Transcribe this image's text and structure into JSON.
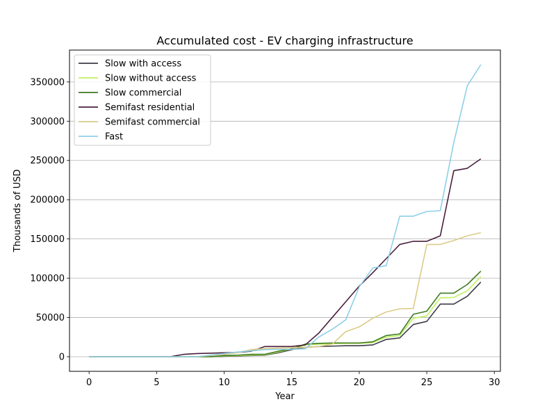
{
  "chart_data": {
    "type": "line",
    "title": "Accumulated cost - EV charging infrastructure",
    "xlabel": "Year",
    "ylabel": "Thousands of USD",
    "xlim": [
      -1.45,
      30.45
    ],
    "ylim": [
      -18600,
      390600
    ],
    "xticks": [
      0,
      5,
      10,
      15,
      20,
      25,
      30
    ],
    "yticks": [
      0,
      50000,
      100000,
      150000,
      200000,
      250000,
      300000,
      350000
    ],
    "grid": "horizontal",
    "legend_position": "top-left",
    "x": [
      0,
      1,
      2,
      3,
      4,
      5,
      6,
      7,
      8,
      9,
      10,
      11,
      12,
      13,
      14,
      15,
      16,
      17,
      18,
      19,
      20,
      21,
      22,
      23,
      24,
      25,
      26,
      27,
      28,
      29
    ],
    "series": [
      {
        "name": "Slow with access",
        "color": "#3b3b48",
        "values": [
          0,
          0,
          0,
          0,
          0,
          0,
          0,
          0,
          0,
          0,
          500,
          1000,
          1500,
          2000,
          5000,
          9000,
          12000,
          13000,
          13500,
          14000,
          14000,
          15000,
          22000,
          24000,
          41000,
          45000,
          67000,
          67000,
          77000,
          95000
        ]
      },
      {
        "name": "Slow without access",
        "color": "#c0f060",
        "values": [
          0,
          0,
          0,
          0,
          0,
          0,
          0,
          0,
          0,
          0,
          1000,
          1500,
          2000,
          2500,
          6000,
          10000,
          15000,
          16000,
          16500,
          17000,
          17000,
          18000,
          25000,
          27000,
          49000,
          52000,
          75000,
          75500,
          84000,
          102000
        ]
      },
      {
        "name": "Slow commercial",
        "color": "#3d7a20",
        "values": [
          0,
          0,
          0,
          0,
          0,
          0,
          0,
          0,
          0,
          0,
          1500,
          2000,
          3000,
          3000,
          7000,
          10000,
          16000,
          17000,
          17500,
          17500,
          17500,
          19000,
          27000,
          29000,
          54000,
          58000,
          81000,
          81000,
          92000,
          109000
        ]
      },
      {
        "name": "Semifast residential",
        "color": "#4a1e3c",
        "values": [
          0,
          0,
          0,
          0,
          0,
          0,
          0,
          3000,
          4000,
          4500,
          5000,
          5500,
          7000,
          13000,
          13000,
          13000,
          15000,
          30000,
          50000,
          70000,
          90000,
          107000,
          125000,
          143000,
          147000,
          147000,
          154000,
          237000,
          240000,
          252000
        ]
      },
      {
        "name": "Semifast commercial",
        "color": "#dccb87",
        "values": [
          0,
          0,
          0,
          0,
          0,
          0,
          0,
          0,
          0,
          1500,
          3000,
          5000,
          9000,
          10500,
          11000,
          11500,
          12000,
          13000,
          16000,
          32000,
          38000,
          49000,
          57000,
          61000,
          61500,
          143000,
          143000,
          148000,
          154000,
          158000
        ]
      },
      {
        "name": "Fast",
        "color": "#8ecfe8",
        "values": [
          0,
          0,
          0,
          0,
          0,
          0,
          0,
          0,
          0,
          2000,
          4000,
          6000,
          7500,
          9000,
          9500,
          9500,
          10000,
          25000,
          35000,
          47000,
          89000,
          113000,
          116000,
          179000,
          179000,
          185000,
          186000,
          273000,
          345000,
          372000
        ]
      }
    ]
  }
}
